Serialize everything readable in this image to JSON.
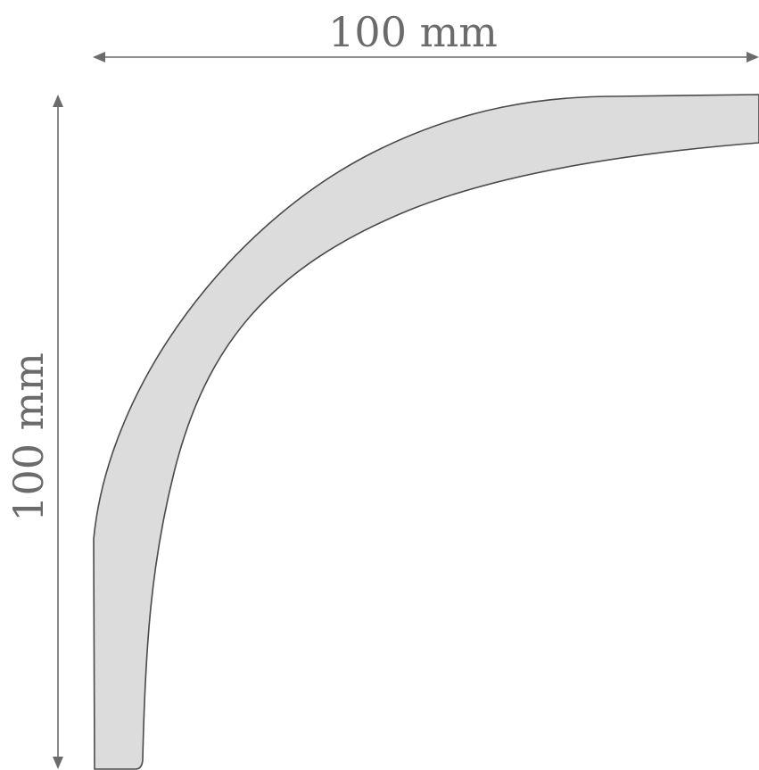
{
  "dimensions": {
    "width_label": "100 mm",
    "height_label": "100 mm"
  },
  "colors": {
    "profile_fill": "#dcdcdc",
    "profile_stroke": "#4a4a4a",
    "dimension": "#6b6b6b",
    "background": "#ffffff"
  }
}
